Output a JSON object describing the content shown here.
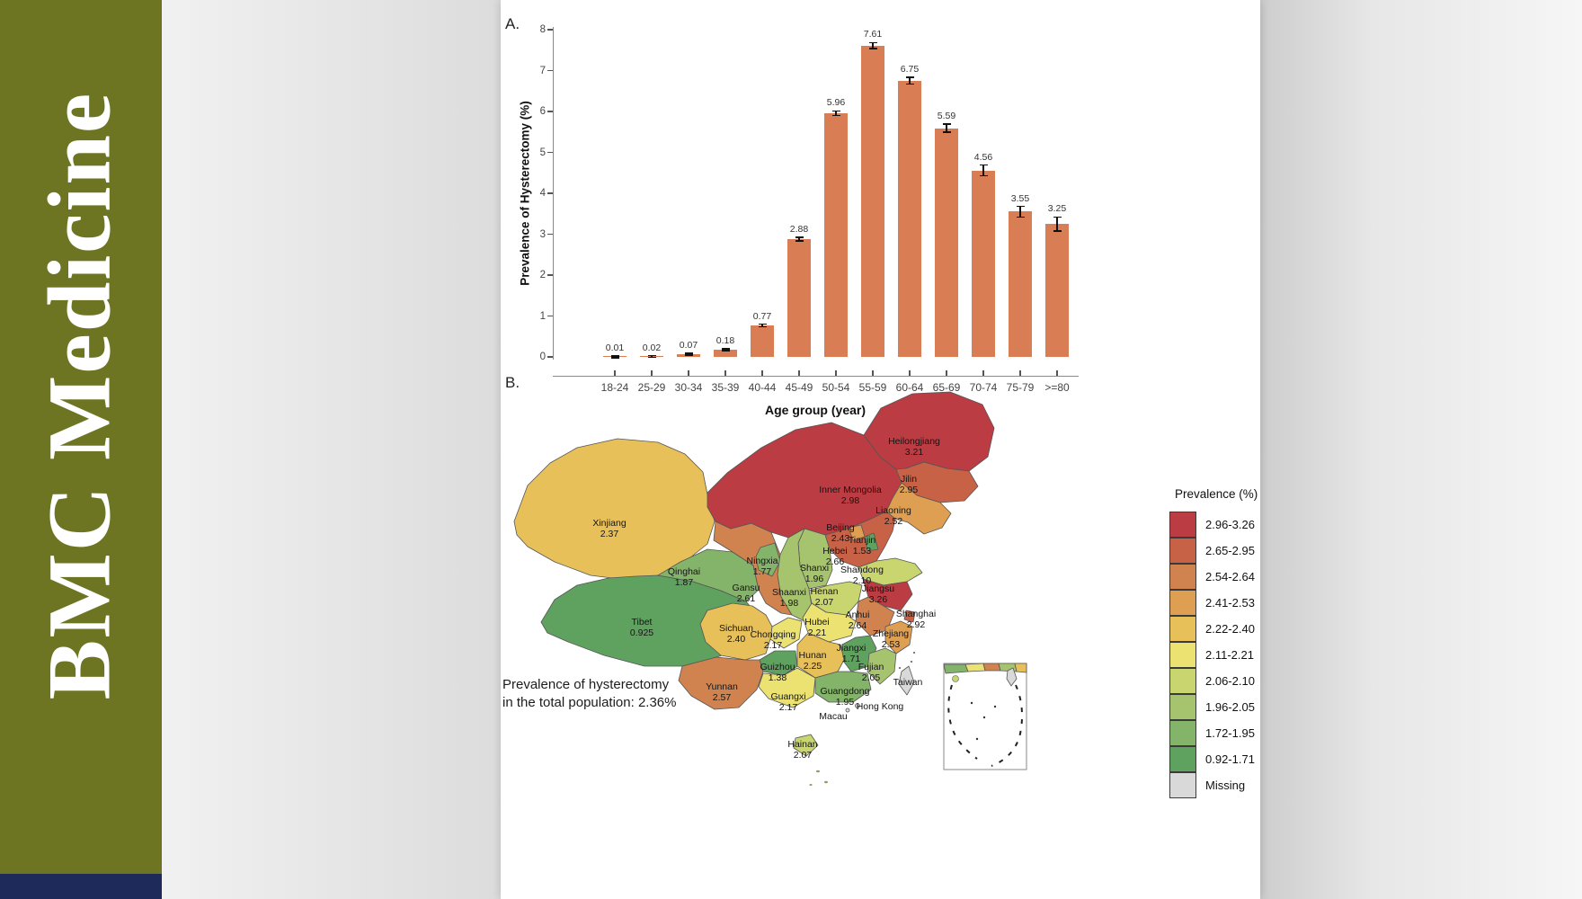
{
  "journal": {
    "name": "BMC Medicine"
  },
  "panels": {
    "a": "A.",
    "b": "B."
  },
  "chart_data": {
    "type": "bar",
    "title": "",
    "xlabel": "Age group (year)",
    "ylabel": "Prevalence of Hysterectomy (%)",
    "ylim": [
      0,
      8
    ],
    "yticks": [
      "0",
      "1",
      "2",
      "3",
      "4",
      "5",
      "6",
      "7",
      "8"
    ],
    "categories": [
      "18-24",
      "25-29",
      "30-34",
      "35-39",
      "40-44",
      "45-49",
      "50-54",
      "55-59",
      "60-64",
      "65-69",
      "70-74",
      "75-79",
      ">=80"
    ],
    "values": [
      0.01,
      0.02,
      0.07,
      0.18,
      0.77,
      2.88,
      5.96,
      7.61,
      6.75,
      5.59,
      4.56,
      3.55,
      3.25
    ],
    "value_labels": [
      "0.01",
      "0.02",
      "0.07",
      "0.18",
      "0.77",
      "2.88",
      "5.96",
      "7.61",
      "6.75",
      "5.59",
      "4.56",
      "3.55",
      "3.25"
    ],
    "errors": [
      0.012,
      0.012,
      0.015,
      0.02,
      0.03,
      0.045,
      0.055,
      0.075,
      0.08,
      0.1,
      0.13,
      0.13,
      0.17
    ],
    "bar_color": "#d97d54",
    "grid": false,
    "legend_position": "none"
  },
  "map": {
    "legend": {
      "title": "Prevalence (%)",
      "entries": [
        {
          "label": "2.96-3.26",
          "color": "#bc3c43"
        },
        {
          "label": "2.65-2.95",
          "color": "#c86247"
        },
        {
          "label": "2.54-2.64",
          "color": "#d0824f"
        },
        {
          "label": "2.41-2.53",
          "color": "#df9f52"
        },
        {
          "label": "2.22-2.40",
          "color": "#e8c05a"
        },
        {
          "label": "2.11-2.21",
          "color": "#ebe272"
        },
        {
          "label": "2.06-2.10",
          "color": "#c9d56f"
        },
        {
          "label": "1.96-2.05",
          "color": "#a6c46d"
        },
        {
          "label": "1.72-1.95",
          "color": "#84b469"
        },
        {
          "label": "0.92-1.71",
          "color": "#5fa25f"
        },
        {
          "label": "Missing",
          "color": "#d9d9d9"
        }
      ]
    },
    "annotation": [
      "Prevalence of hysterectomy",
      "in the total population: 2.36%"
    ],
    "provinces": [
      {
        "id": "heilongjiang",
        "name": "Heilongjiang",
        "value": "3.21",
        "category": 0
      },
      {
        "id": "inner-mongolia",
        "name": "Inner Mongolia",
        "value": "2.98",
        "category": 0
      },
      {
        "id": "jiangsu",
        "name": "Jiangsu",
        "value": "3.26",
        "category": 0
      },
      {
        "id": "jilin",
        "name": "Jilin",
        "value": "2.95",
        "category": 1
      },
      {
        "id": "shanghai",
        "name": "Shanghai",
        "value": "2.92",
        "category": 1
      },
      {
        "id": "hebei",
        "name": "Hebei",
        "value": "2.66",
        "category": 1
      },
      {
        "id": "anhui",
        "name": "Anhui",
        "value": "2.64",
        "category": 2
      },
      {
        "id": "gansu",
        "name": "Gansu",
        "value": "2.61",
        "category": 2
      },
      {
        "id": "yunnan",
        "name": "Yunnan",
        "value": "2.57",
        "category": 2
      },
      {
        "id": "zhejiang",
        "name": "Zhejiang",
        "value": "2.53",
        "category": 3
      },
      {
        "id": "liaoning",
        "name": "Liaoning",
        "value": "2.52",
        "category": 3
      },
      {
        "id": "beijing",
        "name": "Beijing",
        "value": "2.43",
        "category": 3
      },
      {
        "id": "sichuan",
        "name": "Sichuan",
        "value": "2.40",
        "category": 4
      },
      {
        "id": "xinjiang",
        "name": "Xinjiang",
        "value": "2.37",
        "category": 4
      },
      {
        "id": "hunan",
        "name": "Hunan",
        "value": "2.25",
        "category": 4
      },
      {
        "id": "hubei",
        "name": "Hubei",
        "value": "2.21",
        "category": 5
      },
      {
        "id": "chongqing",
        "name": "Chongqing",
        "value": "2.17",
        "category": 5
      },
      {
        "id": "guangxi",
        "name": "Guangxi",
        "value": "2.17",
        "category": 5
      },
      {
        "id": "shandong",
        "name": "Shandong",
        "value": "2.10",
        "category": 6
      },
      {
        "id": "henan",
        "name": "Henan",
        "value": "2.07",
        "category": 6
      },
      {
        "id": "hainan",
        "name": "Hainan",
        "value": "2.07",
        "category": 6
      },
      {
        "id": "fujian",
        "name": "Fujian",
        "value": "2.05",
        "category": 7
      },
      {
        "id": "shaanxi",
        "name": "Shaanxi",
        "value": "1.98",
        "category": 7
      },
      {
        "id": "shanxi",
        "name": "Shanxi",
        "value": "1.96",
        "category": 7
      },
      {
        "id": "guangdong",
        "name": "Guangdong",
        "value": "1.95",
        "category": 8
      },
      {
        "id": "qinghai",
        "name": "Qinghai",
        "value": "1.87",
        "category": 8
      },
      {
        "id": "ningxia",
        "name": "Ningxia",
        "value": "1.77",
        "category": 8
      },
      {
        "id": "jiangxi",
        "name": "Jiangxi",
        "value": "1.71",
        "category": 9
      },
      {
        "id": "tianjin",
        "name": "Tianjin",
        "value": "1.53",
        "category": 9
      },
      {
        "id": "guizhou",
        "name": "Guizhou",
        "value": "1.38",
        "category": 9
      },
      {
        "id": "tibet",
        "name": "Tibet",
        "value": "0.925",
        "category": 9
      },
      {
        "id": "taiwan",
        "name": "Taiwan",
        "value": null,
        "category": 10
      },
      {
        "id": "hong-kong",
        "name": "Hong Kong",
        "value": null,
        "category": 10
      },
      {
        "id": "macau",
        "name": "Macau",
        "value": null,
        "category": 10
      }
    ]
  }
}
